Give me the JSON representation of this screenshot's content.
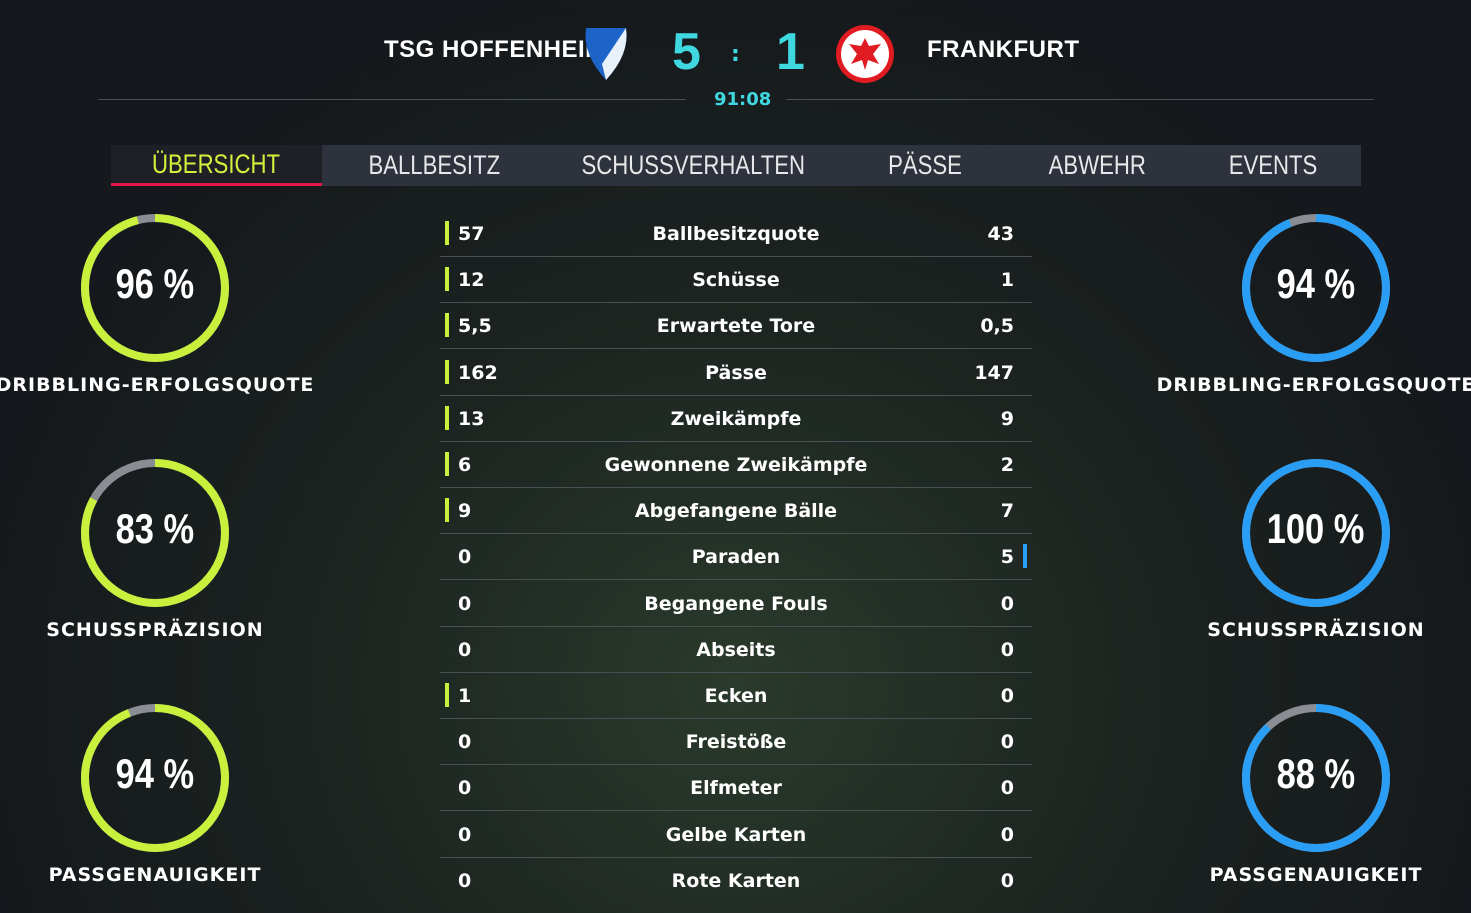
{
  "header": {
    "home_team": "TSG HOFFENHEIM",
    "away_team": "FRANKFURT",
    "home_score": "5",
    "separator": ":",
    "away_score": "1",
    "clock": "91:08",
    "home_crest": "hoffenheim-crest",
    "away_crest": "frankfurt-eagle-crest"
  },
  "tabs": [
    {
      "label": "ÜBERSICHT",
      "active": true
    },
    {
      "label": "BALLBESITZ"
    },
    {
      "label": "SCHUSSVERHALTEN"
    },
    {
      "label": "PÄSSE"
    },
    {
      "label": "ABWEHR"
    },
    {
      "label": "EVENTS"
    }
  ],
  "colors": {
    "home": "#c9f03c",
    "away": "#2a9df4",
    "score": "#3fd8e0",
    "active_tab": "#d7f03c",
    "tab_underline": "#e8174a",
    "ring_track": "#8a8d93"
  },
  "stats": [
    {
      "label": "Ballbesitzquote",
      "home": "57",
      "away": "43",
      "leader": "home"
    },
    {
      "label": "Schüsse",
      "home": "12",
      "away": "1",
      "leader": "home"
    },
    {
      "label": "Erwartete Tore",
      "home": "5,5",
      "away": "0,5",
      "leader": "home"
    },
    {
      "label": "Pässe",
      "home": "162",
      "away": "147",
      "leader": "home"
    },
    {
      "label": "Zweikämpfe",
      "home": "13",
      "away": "9",
      "leader": "home"
    },
    {
      "label": "Gewonnene Zweikämpfe",
      "home": "6",
      "away": "2",
      "leader": "home"
    },
    {
      "label": "Abgefangene Bälle",
      "home": "9",
      "away": "7",
      "leader": "home"
    },
    {
      "label": "Paraden",
      "home": "0",
      "away": "5",
      "leader": "away"
    },
    {
      "label": "Begangene Fouls",
      "home": "0",
      "away": "0",
      "leader": ""
    },
    {
      "label": "Abseits",
      "home": "0",
      "away": "0",
      "leader": ""
    },
    {
      "label": "Ecken",
      "home": "1",
      "away": "0",
      "leader": "home"
    },
    {
      "label": "Freistöße",
      "home": "0",
      "away": "0",
      "leader": ""
    },
    {
      "label": "Elfmeter",
      "home": "0",
      "away": "0",
      "leader": ""
    },
    {
      "label": "Gelbe Karten",
      "home": "0",
      "away": "0",
      "leader": ""
    },
    {
      "label": "Rote Karten",
      "home": "0",
      "away": "0",
      "leader": ""
    }
  ],
  "home_rings": [
    {
      "value": 96,
      "text": "96 %",
      "label": "DRIBBLING-ERFOLGSQUOTE"
    },
    {
      "value": 83,
      "text": "83 %",
      "label": "SCHUSSPRÄZISION"
    },
    {
      "value": 94,
      "text": "94 %",
      "label": "PASSGENAUIGKEIT"
    }
  ],
  "away_rings": [
    {
      "value": 94,
      "text": "94 %",
      "label": "DRIBBLING-ERFOLGSQUOTE"
    },
    {
      "value": 100,
      "text": "100 %",
      "label": "SCHUSSPRÄZISION"
    },
    {
      "value": 88,
      "text": "88 %",
      "label": "PASSGENAUIGKEIT"
    }
  ]
}
